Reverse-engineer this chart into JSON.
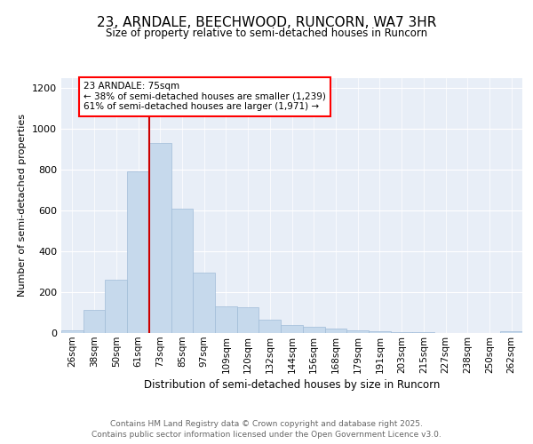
{
  "title_line1": "23, ARNDALE, BEECHWOOD, RUNCORN, WA7 3HR",
  "title_line2": "Size of property relative to semi-detached houses in Runcorn",
  "xlabel": "Distribution of semi-detached houses by size in Runcorn",
  "ylabel": "Number of semi-detached properties",
  "annotation_title": "23 ARNDALE: 75sqm",
  "annotation_line2": "← 38% of semi-detached houses are smaller (1,239)",
  "annotation_line3": "61% of semi-detached houses are larger (1,971) →",
  "bar_color": "#c6d9ec",
  "bar_edge_color": "#a0bcd8",
  "marker_color": "#cc0000",
  "background_color": "#e8eef7",
  "categories": [
    "26sqm",
    "38sqm",
    "50sqm",
    "61sqm",
    "73sqm",
    "85sqm",
    "97sqm",
    "109sqm",
    "120sqm",
    "132sqm",
    "144sqm",
    "156sqm",
    "168sqm",
    "179sqm",
    "191sqm",
    "203sqm",
    "215sqm",
    "227sqm",
    "238sqm",
    "250sqm",
    "262sqm"
  ],
  "values": [
    15,
    115,
    260,
    790,
    930,
    610,
    295,
    130,
    125,
    65,
    40,
    30,
    20,
    15,
    8,
    5,
    3,
    2,
    1,
    1,
    8
  ],
  "ylim": [
    0,
    1250
  ],
  "yticks": [
    0,
    200,
    400,
    600,
    800,
    1000,
    1200
  ],
  "marker_bin_index": 4,
  "footnote1": "Contains HM Land Registry data © Crown copyright and database right 2025.",
  "footnote2": "Contains public sector information licensed under the Open Government Licence v3.0."
}
